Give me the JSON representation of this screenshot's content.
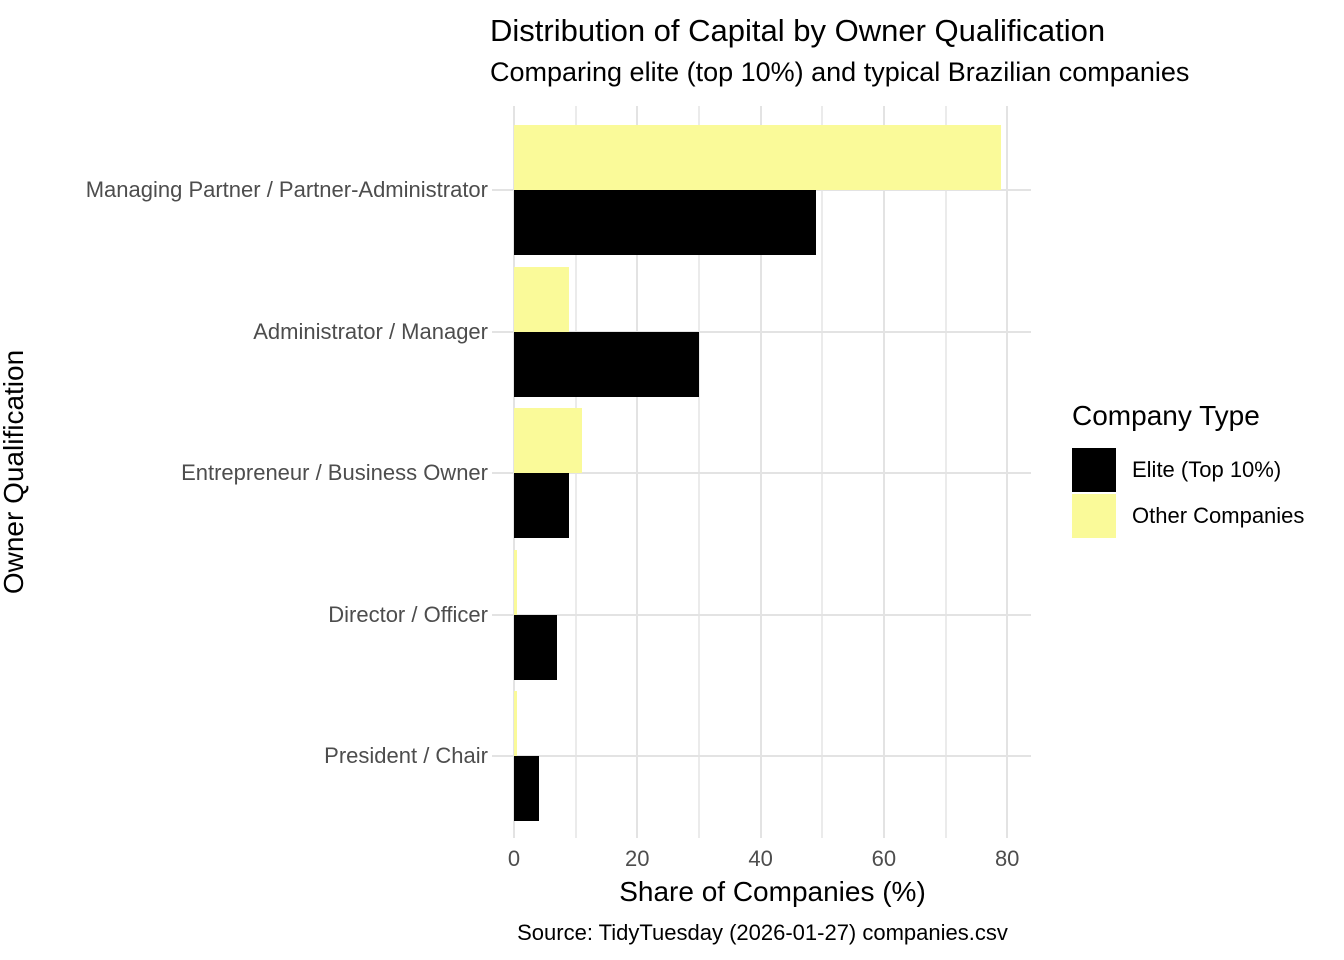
{
  "chart_data": {
    "type": "bar",
    "orientation": "horizontal",
    "title": "Distribution of Capital by Owner Qualification",
    "subtitle": "Comparing elite (top 10%) and typical Brazilian companies",
    "caption": "Source: TidyTuesday (2026-01-27) companies.csv",
    "xlabel": "Share of Companies (%)",
    "ylabel": "Owner Qualification",
    "categories": [
      "Managing Partner / Partner-Administrator",
      "Administrator / Manager",
      "Entrepreneur / Business Owner",
      "Director / Officer",
      "President / Chair"
    ],
    "series": [
      {
        "name": "Elite (Top 10%)",
        "color": "#000000",
        "values": [
          49,
          30,
          9,
          7,
          4
        ]
      },
      {
        "name": "Other Companies",
        "color": "#fafa99",
        "values": [
          79,
          9,
          11,
          0.5,
          0.5
        ]
      }
    ],
    "xlim": [
      0,
      83.8
    ],
    "x_ticks": [
      0,
      20,
      40,
      60,
      80
    ],
    "x_minor_gridlines": [
      10,
      30,
      50,
      70
    ],
    "legend": {
      "title": "Company Type",
      "position": "right"
    },
    "grid": true
  }
}
